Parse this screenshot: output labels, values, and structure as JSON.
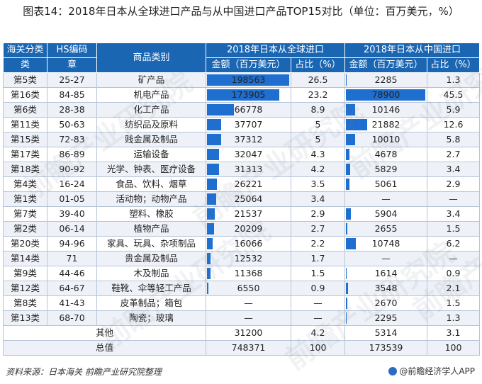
{
  "title": "图表14：2018年日本从全球进口产品与从中国进口产品TOP15对比（单位：百万美元，%）",
  "header": {
    "col1_top": "海关分类",
    "col1_bot": "类",
    "col2_top": "HS编码",
    "col2_bot": "章",
    "col3": "商品类别",
    "global_group": "2018年日本从全球进口",
    "china_group": "2018年日本从中国进口",
    "amount": "金额（百万美元）",
    "share": "占比（%）"
  },
  "rows": [
    {
      "cls": "第5类",
      "hs": "25-27",
      "cat": "矿产品",
      "g_amt": "198563",
      "g_val": 198563,
      "g_pct": "26.5",
      "c_amt": "2285",
      "c_val": 2285,
      "c_pct": "1.3"
    },
    {
      "cls": "第16类",
      "hs": "84-85",
      "cat": "机电产品",
      "g_amt": "173905",
      "g_val": 173905,
      "g_pct": "23.2",
      "c_amt": "78900",
      "c_val": 78900,
      "c_pct": "45.5"
    },
    {
      "cls": "第6类",
      "hs": "28-38",
      "cat": "化工产品",
      "g_amt": "66778",
      "g_val": 66778,
      "g_pct": "8.9",
      "c_amt": "10146",
      "c_val": 10146,
      "c_pct": "5.9"
    },
    {
      "cls": "第11类",
      "hs": "50-63",
      "cat": "纺织品及原料",
      "g_amt": "37707",
      "g_val": 37707,
      "g_pct": "5",
      "c_amt": "21882",
      "c_val": 21882,
      "c_pct": "12.6"
    },
    {
      "cls": "第15类",
      "hs": "72-83",
      "cat": "贱金属及制品",
      "g_amt": "37312",
      "g_val": 37312,
      "g_pct": "5",
      "c_amt": "10010",
      "c_val": 10010,
      "c_pct": "5.8"
    },
    {
      "cls": "第17类",
      "hs": "86-89",
      "cat": "运输设备",
      "g_amt": "32047",
      "g_val": 32047,
      "g_pct": "4.3",
      "c_amt": "4678",
      "c_val": 4678,
      "c_pct": "2.7"
    },
    {
      "cls": "第18类",
      "hs": "90-92",
      "cat": "光学、钟表、医疗设备",
      "g_amt": "31313",
      "g_val": 31313,
      "g_pct": "4.2",
      "c_amt": "5829",
      "c_val": 5829,
      "c_pct": "3.4"
    },
    {
      "cls": "第4类",
      "hs": "16-24",
      "cat": "食品、饮料、烟草",
      "g_amt": "26221",
      "g_val": 26221,
      "g_pct": "3.5",
      "c_amt": "5061",
      "c_val": 5061,
      "c_pct": "2.9"
    },
    {
      "cls": "第1类",
      "hs": "01-05",
      "cat": "活动物；动物产品",
      "g_amt": "25064",
      "g_val": 25064,
      "g_pct": "3.4",
      "c_amt": "—",
      "c_val": 0,
      "c_pct": "—"
    },
    {
      "cls": "第7类",
      "hs": "39-40",
      "cat": "塑料、橡胶",
      "g_amt": "21537",
      "g_val": 21537,
      "g_pct": "2.9",
      "c_amt": "5904",
      "c_val": 5904,
      "c_pct": "3.4"
    },
    {
      "cls": "第2类",
      "hs": "06-14",
      "cat": "植物产品",
      "g_amt": "20209",
      "g_val": 20209,
      "g_pct": "2.7",
      "c_amt": "2655",
      "c_val": 2655,
      "c_pct": "1.5"
    },
    {
      "cls": "第20类",
      "hs": "94-96",
      "cat": "家具、玩具、杂项制品",
      "g_amt": "16066",
      "g_val": 16066,
      "g_pct": "2.2",
      "c_amt": "10748",
      "c_val": 10748,
      "c_pct": "6.2"
    },
    {
      "cls": "第14类",
      "hs": "71",
      "cat": "贵金属及制品",
      "g_amt": "12532",
      "g_val": 12532,
      "g_pct": "1.7",
      "c_amt": "—",
      "c_val": 0,
      "c_pct": "—"
    },
    {
      "cls": "第9类",
      "hs": "44-46",
      "cat": "木及制品",
      "g_amt": "11368",
      "g_val": 11368,
      "g_pct": "1.5",
      "c_amt": "1614",
      "c_val": 1614,
      "c_pct": "0.9"
    },
    {
      "cls": "第12类",
      "hs": "64-67",
      "cat": "鞋靴、伞等轻工产品",
      "g_amt": "6550",
      "g_val": 6550,
      "g_pct": "0.9",
      "c_amt": "3548",
      "c_val": 3548,
      "c_pct": "2.1"
    },
    {
      "cls": "第8类",
      "hs": "41-43",
      "cat": "皮革制品；箱包",
      "g_amt": "—",
      "g_val": 0,
      "g_pct": "—",
      "c_amt": "2670",
      "c_val": 2670,
      "c_pct": "1.5"
    },
    {
      "cls": "第13类",
      "hs": "68-70",
      "cat": "陶瓷；玻璃",
      "g_amt": "—",
      "g_val": 0,
      "g_pct": "—",
      "c_amt": "2295",
      "c_val": 2295,
      "c_pct": "1.3"
    }
  ],
  "other": {
    "label": "其他",
    "g_amt": "31200",
    "g_pct": "4.2",
    "c_amt": "5314",
    "c_pct": "3.1"
  },
  "total": {
    "label": "总值",
    "g_amt": "748371",
    "g_pct": "100",
    "c_amt": "173539",
    "c_pct": "100"
  },
  "bar_color": "#1f6fd1",
  "header_color": "#1a66b3",
  "footer": {
    "source": "资料来源：日本海关 前瞻产业研究院整理",
    "brand": "@前瞻经济学人APP"
  },
  "watermark": "前瞻产业研究院"
}
